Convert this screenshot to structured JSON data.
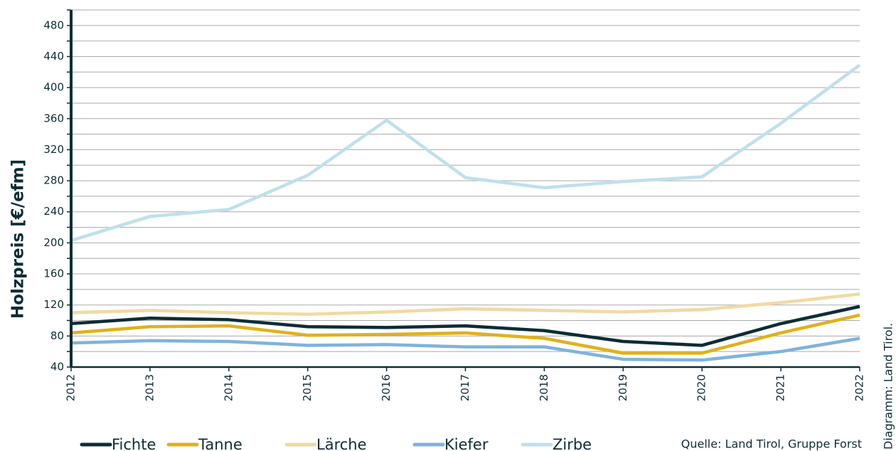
{
  "chart_data": {
    "type": "line",
    "y_label": "Holzpreis [€/efm]",
    "source": "Quelle: Land Tirol, Gruppe Forst",
    "credit": "Diagramm: Land Tirol.",
    "categories": [
      "2012",
      "2013",
      "2014",
      "2015",
      "2016",
      "2017",
      "2018",
      "2019",
      "2020",
      "2021",
      "2022"
    ],
    "series": [
      {
        "name": "Fichte",
        "color": "#0d2d35",
        "values": [
          96,
          103,
          101,
          92,
          91,
          93,
          87,
          73,
          68,
          96,
          118
        ]
      },
      {
        "name": "Tanne",
        "color": "#e0b11a",
        "values": [
          84,
          92,
          93,
          81,
          82,
          84,
          77,
          58,
          58,
          84,
          107
        ]
      },
      {
        "name": "Lärche",
        "color": "#f1d9a4",
        "values": [
          110,
          113,
          110,
          108,
          111,
          115,
          113,
          111,
          114,
          123,
          134
        ]
      },
      {
        "name": "Kiefer",
        "color": "#7fb3dc",
        "values": [
          71,
          74,
          73,
          68,
          69,
          66,
          66,
          50,
          49,
          60,
          77
        ]
      },
      {
        "name": "Zirbe",
        "color": "#bfe0ec",
        "values": [
          203,
          234,
          243,
          287,
          358,
          284,
          271,
          279,
          285,
          354,
          429
        ]
      }
    ],
    "ylim": [
      40,
      500
    ],
    "yticks": [
      40,
      80,
      120,
      160,
      200,
      240,
      280,
      320,
      360,
      400,
      440,
      480
    ],
    "minor_yticks": [
      60,
      100,
      140,
      180,
      220,
      260,
      300,
      340,
      380,
      420,
      460,
      500
    ],
    "grid": true
  }
}
